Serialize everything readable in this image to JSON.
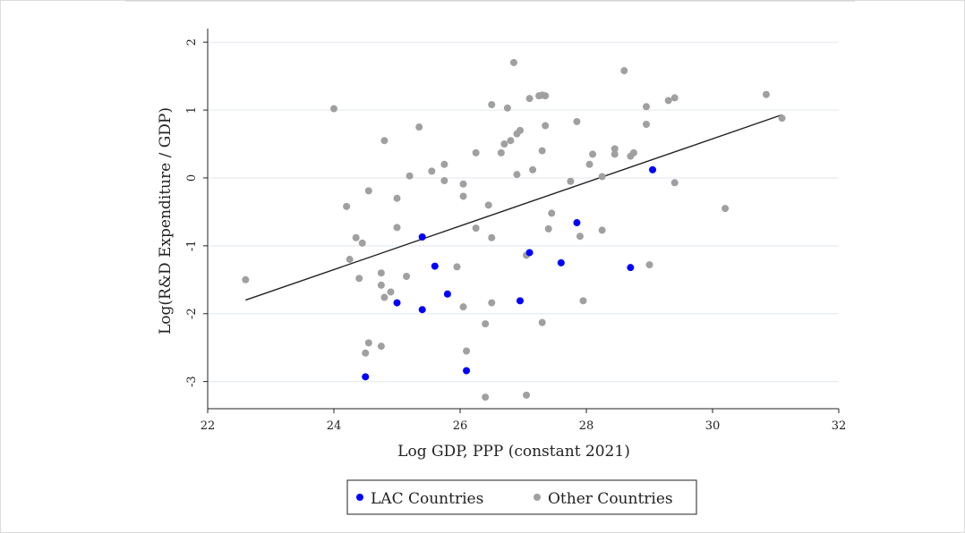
{
  "chart_data": {
    "type": "scatter",
    "title": "",
    "xlabel": "Log GDP, PPP (constant 2021)",
    "ylabel": "Log(R&D Expenditure / GDP)",
    "xlim": [
      22,
      32
    ],
    "ylim": [
      -3.4,
      2.2
    ],
    "xticks": [
      22,
      24,
      26,
      28,
      30,
      32
    ],
    "yticks": [
      -3,
      -2,
      -1,
      0,
      1,
      2
    ],
    "grid": true,
    "legend_placement": "bottom",
    "series": [
      {
        "name": "LAC Countries",
        "color": "#0000ff",
        "points": [
          [
            24.5,
            -2.93
          ],
          [
            25.0,
            -1.84
          ],
          [
            25.4,
            -0.87
          ],
          [
            25.4,
            -1.94
          ],
          [
            25.6,
            -1.3
          ],
          [
            25.8,
            -1.71
          ],
          [
            26.1,
            -2.84
          ],
          [
            26.95,
            -1.81
          ],
          [
            27.1,
            -1.1
          ],
          [
            27.6,
            -1.25
          ],
          [
            27.85,
            -0.66
          ],
          [
            28.7,
            -1.32
          ],
          [
            29.05,
            0.12
          ]
        ]
      },
      {
        "name": "Other Countries",
        "color": "#a0a0a0",
        "points": [
          [
            22.6,
            -1.5
          ],
          [
            24.0,
            1.02
          ],
          [
            24.2,
            -0.42
          ],
          [
            24.25,
            -1.2
          ],
          [
            24.35,
            -0.88
          ],
          [
            24.4,
            -1.48
          ],
          [
            24.45,
            -0.96
          ],
          [
            24.5,
            -2.58
          ],
          [
            24.55,
            -2.43
          ],
          [
            24.55,
            -0.19
          ],
          [
            24.75,
            -2.48
          ],
          [
            24.75,
            -1.4
          ],
          [
            24.75,
            -1.58
          ],
          [
            24.8,
            0.55
          ],
          [
            24.8,
            -1.76
          ],
          [
            24.9,
            -1.68
          ],
          [
            25.0,
            -0.73
          ],
          [
            25.0,
            -0.3
          ],
          [
            25.15,
            -1.45
          ],
          [
            25.2,
            0.03
          ],
          [
            25.35,
            0.75
          ],
          [
            25.55,
            0.1
          ],
          [
            25.75,
            0.2
          ],
          [
            25.75,
            -0.04
          ],
          [
            25.95,
            -1.31
          ],
          [
            26.05,
            -0.27
          ],
          [
            26.05,
            -0.09
          ],
          [
            26.05,
            -1.9
          ],
          [
            26.1,
            -2.55
          ],
          [
            26.25,
            0.37
          ],
          [
            26.25,
            -0.74
          ],
          [
            26.4,
            -3.23
          ],
          [
            26.4,
            -2.15
          ],
          [
            26.45,
            -0.4
          ],
          [
            26.5,
            1.08
          ],
          [
            26.5,
            -0.88
          ],
          [
            26.5,
            -1.84
          ],
          [
            26.65,
            0.37
          ],
          [
            26.7,
            0.5
          ],
          [
            26.75,
            1.03
          ],
          [
            26.8,
            0.55
          ],
          [
            26.85,
            1.7
          ],
          [
            26.9,
            0.05
          ],
          [
            26.9,
            0.65
          ],
          [
            26.95,
            0.7
          ],
          [
            27.05,
            -3.2
          ],
          [
            27.05,
            -1.14
          ],
          [
            27.1,
            1.17
          ],
          [
            27.15,
            0.12
          ],
          [
            27.25,
            1.21
          ],
          [
            27.3,
            1.22
          ],
          [
            27.3,
            0.4
          ],
          [
            27.3,
            -2.13
          ],
          [
            27.35,
            1.21
          ],
          [
            27.35,
            0.77
          ],
          [
            27.4,
            -0.75
          ],
          [
            27.45,
            -0.52
          ],
          [
            27.75,
            -0.05
          ],
          [
            27.85,
            0.83
          ],
          [
            27.9,
            -0.86
          ],
          [
            27.95,
            -1.81
          ],
          [
            28.05,
            0.2
          ],
          [
            28.1,
            0.35
          ],
          [
            28.25,
            0.02
          ],
          [
            28.25,
            -0.77
          ],
          [
            28.45,
            0.35
          ],
          [
            28.45,
            0.43
          ],
          [
            28.6,
            1.58
          ],
          [
            28.7,
            0.32
          ],
          [
            28.75,
            0.37
          ],
          [
            28.95,
            1.05
          ],
          [
            28.95,
            0.79
          ],
          [
            29.0,
            -1.28
          ],
          [
            29.3,
            1.14
          ],
          [
            29.4,
            1.18
          ],
          [
            29.4,
            -0.07
          ],
          [
            30.2,
            -0.45
          ],
          [
            30.85,
            1.23
          ],
          [
            31.1,
            0.88
          ]
        ]
      }
    ],
    "fit_line": {
      "type": "linear",
      "from": [
        22.6,
        -1.8
      ],
      "to": [
        31.1,
        0.93
      ],
      "color": "#222222"
    }
  }
}
